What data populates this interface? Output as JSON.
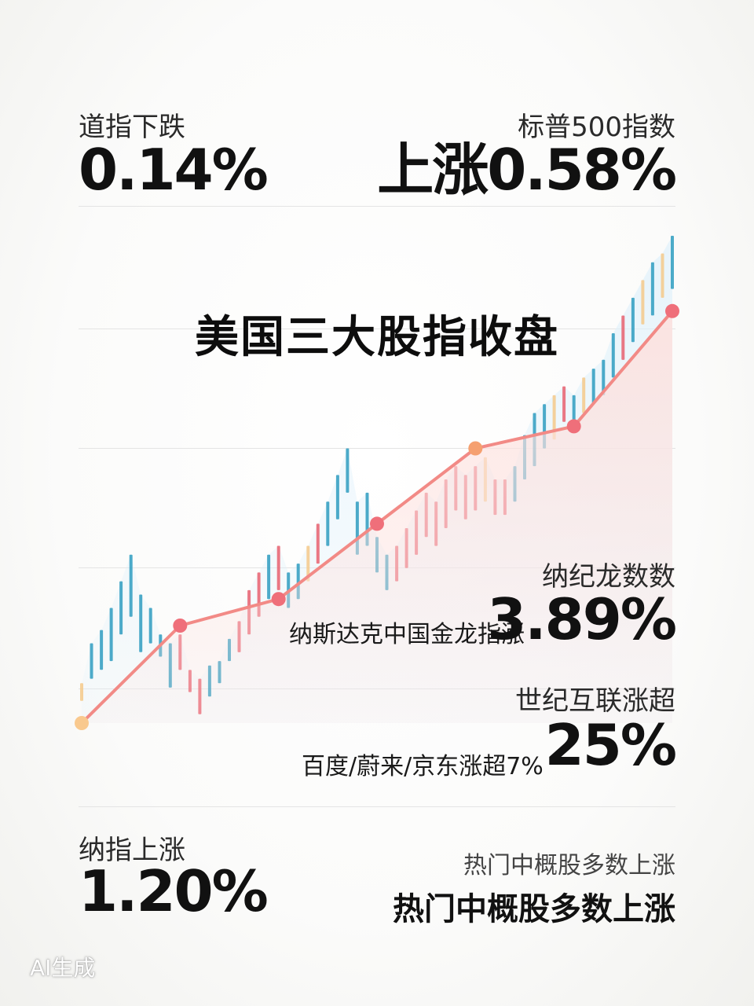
{
  "title": "美国三大股指收盘",
  "dow": {
    "label": "道指下跌",
    "value": "0.14%"
  },
  "sp500": {
    "label": "标普500指数",
    "value": "上涨0.58%"
  },
  "nasdaq_golden_dragon": {
    "label": "纳纪龙数数",
    "sub": "纳斯达克中国金龙指涨",
    "value": "3.89%"
  },
  "century_internet": {
    "label": "世纪互联涨超",
    "sub": "百度/蔚来/京东涨超7%",
    "value": "25%"
  },
  "nasdaq": {
    "label": "纳指上涨",
    "value": "1.20%"
  },
  "china_concept": {
    "label": "热门中概股多数上涨",
    "value": "热门中概股多数上涨"
  },
  "watermark": "AI生成",
  "colors": {
    "up": "#e8606e",
    "down": "#2e9cc0",
    "neutral": "#f5c98a",
    "trend": "#f28a86",
    "area": "#fde1de",
    "area_blue": "#dff1fb"
  },
  "chart_data": {
    "type": "line",
    "title": "",
    "xlabel": "",
    "ylabel": "",
    "series": [
      {
        "values": [
          0,
          22,
          28,
          45,
          62,
          67,
          93
        ]
      }
    ],
    "x": [
      1,
      2,
      3,
      4,
      5,
      6,
      7
    ],
    "candles": [
      {
        "open": 5,
        "close": 9,
        "color": "neutral"
      },
      {
        "open": 10,
        "close": 18,
        "color": "down"
      },
      {
        "open": 12,
        "close": 21,
        "color": "down"
      },
      {
        "open": 14,
        "close": 26,
        "color": "down"
      },
      {
        "open": 20,
        "close": 32,
        "color": "down"
      },
      {
        "open": 24,
        "close": 38,
        "color": "down"
      },
      {
        "open": 16,
        "close": 29,
        "color": "down"
      },
      {
        "open": 18,
        "close": 26,
        "color": "down"
      },
      {
        "open": 15,
        "close": 20,
        "color": "down"
      },
      {
        "open": 8,
        "close": 18,
        "color": "down"
      },
      {
        "open": 12,
        "close": 20,
        "color": "up"
      },
      {
        "open": 7,
        "close": 12,
        "color": "up"
      },
      {
        "open": 2,
        "close": 10,
        "color": "up"
      },
      {
        "open": 6,
        "close": 13,
        "color": "down"
      },
      {
        "open": 9,
        "close": 14,
        "color": "down"
      },
      {
        "open": 14,
        "close": 19,
        "color": "down"
      },
      {
        "open": 16,
        "close": 23,
        "color": "up"
      },
      {
        "open": 20,
        "close": 30,
        "color": "up"
      },
      {
        "open": 24,
        "close": 34,
        "color": "up"
      },
      {
        "open": 28,
        "close": 38,
        "color": "down"
      },
      {
        "open": 30,
        "close": 40,
        "color": "up"
      },
      {
        "open": 26,
        "close": 34,
        "color": "down"
      },
      {
        "open": 28,
        "close": 36,
        "color": "down"
      },
      {
        "open": 32,
        "close": 40,
        "color": "neutral"
      },
      {
        "open": 36,
        "close": 45,
        "color": "up"
      },
      {
        "open": 40,
        "close": 50,
        "color": "down"
      },
      {
        "open": 46,
        "close": 56,
        "color": "down"
      },
      {
        "open": 52,
        "close": 62,
        "color": "down"
      },
      {
        "open": 38,
        "close": 50,
        "color": "down"
      },
      {
        "open": 40,
        "close": 52,
        "color": "down"
      },
      {
        "open": 34,
        "close": 42,
        "color": "down"
      },
      {
        "open": 30,
        "close": 38,
        "color": "down"
      },
      {
        "open": 32,
        "close": 40,
        "color": "up"
      },
      {
        "open": 35,
        "close": 44,
        "color": "up"
      },
      {
        "open": 38,
        "close": 48,
        "color": "up"
      },
      {
        "open": 42,
        "close": 52,
        "color": "up"
      },
      {
        "open": 40,
        "close": 50,
        "color": "up"
      },
      {
        "open": 44,
        "close": 55,
        "color": "up"
      },
      {
        "open": 48,
        "close": 58,
        "color": "up"
      },
      {
        "open": 46,
        "close": 56,
        "color": "up"
      },
      {
        "open": 48,
        "close": 58,
        "color": "up"
      },
      {
        "open": 50,
        "close": 60,
        "color": "neutral"
      },
      {
        "open": 47,
        "close": 55,
        "color": "up"
      },
      {
        "open": 47,
        "close": 55,
        "color": "up"
      },
      {
        "open": 50,
        "close": 58,
        "color": "down"
      },
      {
        "open": 55,
        "close": 65,
        "color": "down"
      },
      {
        "open": 58,
        "close": 70,
        "color": "down"
      },
      {
        "open": 62,
        "close": 72,
        "color": "down"
      },
      {
        "open": 64,
        "close": 74,
        "color": "neutral"
      },
      {
        "open": 68,
        "close": 76,
        "color": "up"
      },
      {
        "open": 66,
        "close": 74,
        "color": "down"
      },
      {
        "open": 70,
        "close": 78,
        "color": "neutral"
      },
      {
        "open": 72,
        "close": 80,
        "color": "down"
      },
      {
        "open": 74,
        "close": 82,
        "color": "down"
      },
      {
        "open": 78,
        "close": 88,
        "color": "down"
      },
      {
        "open": 82,
        "close": 92,
        "color": "up"
      },
      {
        "open": 86,
        "close": 96,
        "color": "down"
      },
      {
        "open": 90,
        "close": 100,
        "color": "neutral"
      },
      {
        "open": 92,
        "close": 104,
        "color": "down"
      },
      {
        "open": 96,
        "close": 106,
        "color": "neutral"
      },
      {
        "open": 98,
        "close": 110,
        "color": "down"
      }
    ],
    "ylim": [
      0,
      110
    ],
    "grid": true
  }
}
